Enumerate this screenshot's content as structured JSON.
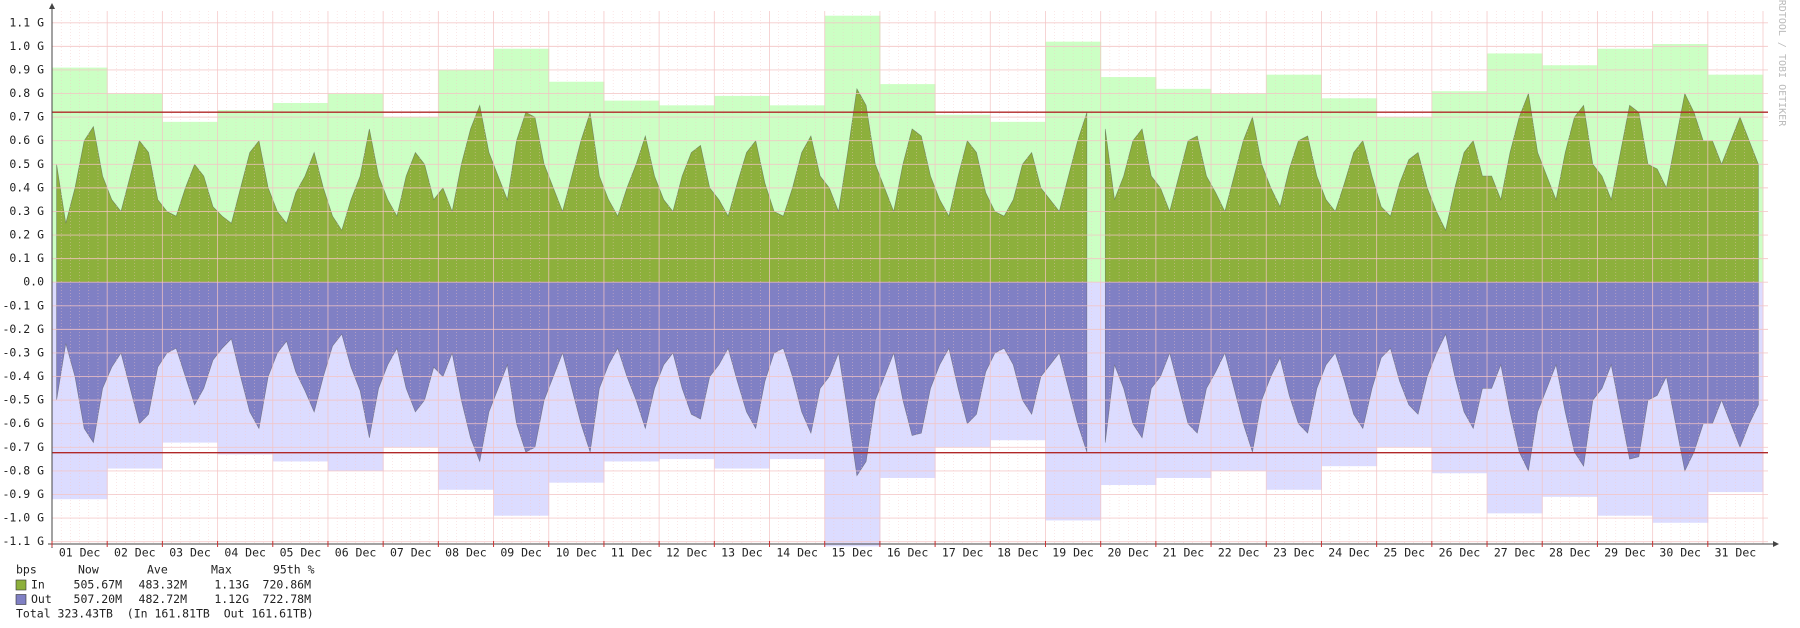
{
  "chart_data": {
    "type": "area",
    "watermark": "RRDTOOL / TOBI OETIKER",
    "categories": [
      "01 Dec",
      "02 Dec",
      "03 Dec",
      "04 Dec",
      "05 Dec",
      "06 Dec",
      "07 Dec",
      "08 Dec",
      "09 Dec",
      "10 Dec",
      "11 Dec",
      "12 Dec",
      "13 Dec",
      "14 Dec",
      "15 Dec",
      "16 Dec",
      "17 Dec",
      "18 Dec",
      "19 Dec",
      "20 Dec",
      "21 Dec",
      "22 Dec",
      "23 Dec",
      "24 Dec",
      "25 Dec",
      "26 Dec",
      "27 Dec",
      "28 Dec",
      "29 Dec",
      "30 Dec",
      "31 Dec"
    ],
    "ylim": [
      -1.11,
      1.15
    ],
    "yticks": [
      {
        "value": 1.1,
        "label": "1.1 G"
      },
      {
        "value": 1.0,
        "label": "1.0 G"
      },
      {
        "value": 0.9,
        "label": "0.9 G"
      },
      {
        "value": 0.8,
        "label": "0.8 G"
      },
      {
        "value": 0.7,
        "label": "0.7 G"
      },
      {
        "value": 0.6,
        "label": "0.6 G"
      },
      {
        "value": 0.5,
        "label": "0.5 G"
      },
      {
        "value": 0.4,
        "label": "0.4 G"
      },
      {
        "value": 0.3,
        "label": "0.3 G"
      },
      {
        "value": 0.2,
        "label": "0.2 G"
      },
      {
        "value": 0.1,
        "label": "0.1 G"
      },
      {
        "value": 0,
        "label": "0.0"
      },
      {
        "value": -0.1,
        "label": "-0.1 G"
      },
      {
        "value": -0.2,
        "label": "-0.2 G"
      },
      {
        "value": -0.3,
        "label": "-0.3 G"
      },
      {
        "value": -0.4,
        "label": "-0.4 G"
      },
      {
        "value": -0.5,
        "label": "-0.5 G"
      },
      {
        "value": -0.6,
        "label": "-0.6 G"
      },
      {
        "value": -0.7,
        "label": "-0.7 G"
      },
      {
        "value": -0.8,
        "label": "-0.8 G"
      },
      {
        "value": -0.9,
        "label": "-0.9 G"
      },
      {
        "value": -1.0,
        "label": "-1.0 G"
      },
      {
        "value": -1.1,
        "label": "-1.1 G"
      }
    ],
    "grid": true,
    "grid_color": "#f4c4c4",
    "percentile_lines": [
      0.72086,
      -0.72278
    ],
    "percentile_color": "#b02828",
    "series": [
      {
        "color": "#ccffc4",
        "values": [
          0.91,
          0.8,
          0.68,
          0.73,
          0.76,
          0.8,
          0.7,
          0.9,
          0.99,
          0.85,
          0.77,
          0.75,
          0.79,
          0.75,
          1.13,
          0.84,
          0.71,
          0.68,
          1.02,
          0.87,
          0.82,
          0.8,
          0.88,
          0.78,
          0.7,
          0.81,
          0.97,
          0.92,
          0.99,
          1.01,
          0.88
        ]
      },
      {
        "name": "In",
        "color": "#8db03c",
        "values": [
          [
            0.5,
            0.25,
            0.4,
            0.6,
            0.66,
            0.45
          ],
          [
            0.35,
            0.3,
            0.45,
            0.6,
            0.55,
            0.35
          ],
          [
            0.3,
            0.28,
            0.4,
            0.5,
            0.45,
            0.32
          ],
          [
            0.28,
            0.25,
            0.4,
            0.55,
            0.6,
            0.4
          ],
          [
            0.3,
            0.25,
            0.38,
            0.45,
            0.55,
            0.4
          ],
          [
            0.28,
            0.22,
            0.35,
            0.45,
            0.65,
            0.45
          ],
          [
            0.35,
            0.28,
            0.45,
            0.55,
            0.5,
            0.35
          ],
          [
            0.4,
            0.3,
            0.5,
            0.65,
            0.75,
            0.55
          ],
          [
            0.45,
            0.35,
            0.6,
            0.72,
            0.7,
            0.5
          ],
          [
            0.4,
            0.3,
            0.45,
            0.6,
            0.72,
            0.45
          ],
          [
            0.35,
            0.28,
            0.4,
            0.5,
            0.62,
            0.45
          ],
          [
            0.35,
            0.3,
            0.45,
            0.55,
            0.58,
            0.4
          ],
          [
            0.35,
            0.28,
            0.42,
            0.55,
            0.6,
            0.42
          ],
          [
            0.3,
            0.28,
            0.4,
            0.55,
            0.62,
            0.45
          ],
          [
            0.4,
            0.3,
            0.55,
            0.82,
            0.75,
            0.5
          ],
          [
            0.4,
            0.3,
            0.5,
            0.65,
            0.62,
            0.45
          ],
          [
            0.35,
            0.28,
            0.45,
            0.6,
            0.55,
            0.38
          ],
          [
            0.3,
            0.28,
            0.35,
            0.5,
            0.55,
            0.4
          ],
          [
            0.35,
            0.3,
            0.45,
            0.6,
            0.72,
            null
          ],
          [
            0.65,
            0.35,
            0.45,
            0.6,
            0.65,
            0.45
          ],
          [
            0.4,
            0.3,
            0.45,
            0.6,
            0.62,
            0.45
          ],
          [
            0.38,
            0.3,
            0.45,
            0.6,
            0.7,
            0.5
          ],
          [
            0.4,
            0.32,
            0.48,
            0.6,
            0.62,
            0.45
          ],
          [
            0.35,
            0.3,
            0.42,
            0.55,
            0.6,
            0.45
          ],
          [
            0.32,
            0.28,
            0.42,
            0.52,
            0.55,
            0.4
          ],
          [
            0.3,
            0.22,
            0.4,
            0.55,
            0.6,
            0.45
          ],
          [
            0.45,
            0.35,
            0.55,
            0.7,
            0.8,
            0.55
          ],
          [
            0.45,
            0.35,
            0.55,
            0.7,
            0.75,
            0.5
          ],
          [
            0.45,
            0.35,
            0.55,
            0.75,
            0.72,
            0.5
          ],
          [
            0.48,
            0.4,
            0.6,
            0.8,
            0.72,
            0.6
          ],
          [
            0.6,
            0.5,
            0.6,
            0.7,
            0.6,
            0.5
          ]
        ]
      },
      {
        "color": "#dcdcff",
        "values": [
          -0.92,
          -0.79,
          -0.68,
          -0.73,
          -0.76,
          -0.8,
          -0.7,
          -0.88,
          -0.99,
          -0.85,
          -0.76,
          -0.75,
          -0.79,
          -0.75,
          -1.12,
          -0.83,
          -0.7,
          -0.67,
          -1.01,
          -0.86,
          -0.83,
          -0.8,
          -0.88,
          -0.78,
          -0.7,
          -0.81,
          -0.98,
          -0.91,
          -0.99,
          -1.02,
          -0.89
        ]
      },
      {
        "name": "Out",
        "color": "#8080c4",
        "values": [
          [
            -0.5,
            -0.26,
            -0.4,
            -0.62,
            -0.68,
            -0.45
          ],
          [
            -0.36,
            -0.3,
            -0.45,
            -0.6,
            -0.56,
            -0.36
          ],
          [
            -0.3,
            -0.28,
            -0.4,
            -0.52,
            -0.45,
            -0.33
          ],
          [
            -0.28,
            -0.24,
            -0.4,
            -0.55,
            -0.62,
            -0.4
          ],
          [
            -0.3,
            -0.25,
            -0.38,
            -0.46,
            -0.55,
            -0.4
          ],
          [
            -0.27,
            -0.22,
            -0.36,
            -0.46,
            -0.66,
            -0.45
          ],
          [
            -0.35,
            -0.28,
            -0.45,
            -0.55,
            -0.5,
            -0.36
          ],
          [
            -0.4,
            -0.3,
            -0.5,
            -0.66,
            -0.76,
            -0.55
          ],
          [
            -0.45,
            -0.35,
            -0.6,
            -0.72,
            -0.7,
            -0.5
          ],
          [
            -0.4,
            -0.3,
            -0.45,
            -0.6,
            -0.72,
            -0.45
          ],
          [
            -0.35,
            -0.28,
            -0.4,
            -0.5,
            -0.62,
            -0.45
          ],
          [
            -0.35,
            -0.3,
            -0.45,
            -0.56,
            -0.58,
            -0.4
          ],
          [
            -0.35,
            -0.28,
            -0.42,
            -0.55,
            -0.62,
            -0.42
          ],
          [
            -0.3,
            -0.28,
            -0.4,
            -0.55,
            -0.64,
            -0.45
          ],
          [
            -0.4,
            -0.3,
            -0.55,
            -0.82,
            -0.76,
            -0.5
          ],
          [
            -0.4,
            -0.3,
            -0.5,
            -0.65,
            -0.64,
            -0.45
          ],
          [
            -0.35,
            -0.28,
            -0.45,
            -0.6,
            -0.56,
            -0.38
          ],
          [
            -0.3,
            -0.28,
            -0.35,
            -0.5,
            -0.56,
            -0.4
          ],
          [
            -0.35,
            -0.3,
            -0.45,
            -0.6,
            -0.72,
            null
          ],
          [
            -0.68,
            -0.35,
            -0.45,
            -0.6,
            -0.66,
            -0.45
          ],
          [
            -0.4,
            -0.3,
            -0.45,
            -0.6,
            -0.64,
            -0.45
          ],
          [
            -0.38,
            -0.3,
            -0.45,
            -0.6,
            -0.72,
            -0.5
          ],
          [
            -0.4,
            -0.32,
            -0.48,
            -0.6,
            -0.64,
            -0.45
          ],
          [
            -0.35,
            -0.3,
            -0.42,
            -0.56,
            -0.62,
            -0.45
          ],
          [
            -0.32,
            -0.28,
            -0.42,
            -0.52,
            -0.56,
            -0.4
          ],
          [
            -0.3,
            -0.22,
            -0.4,
            -0.55,
            -0.62,
            -0.45
          ],
          [
            -0.45,
            -0.35,
            -0.55,
            -0.72,
            -0.8,
            -0.55
          ],
          [
            -0.45,
            -0.35,
            -0.55,
            -0.72,
            -0.78,
            -0.5
          ],
          [
            -0.45,
            -0.35,
            -0.55,
            -0.75,
            -0.74,
            -0.5
          ],
          [
            -0.48,
            -0.4,
            -0.6,
            -0.8,
            -0.72,
            -0.6
          ],
          [
            -0.6,
            -0.5,
            -0.6,
            -0.7,
            -0.6,
            -0.52
          ]
        ]
      }
    ],
    "stats": {
      "headers": [
        "bps",
        "Now",
        "Ave",
        "Max",
        "95th %"
      ],
      "rows": [
        {
          "series": 1,
          "values": [
            "505.67M",
            "483.32M",
            "1.13G",
            "720.86M"
          ]
        },
        {
          "series": 3,
          "values": [
            "507.20M",
            "482.72M",
            "1.12G",
            "722.78M"
          ]
        }
      ],
      "total": "Total 323.43TB  (In 161.81TB  Out 161.61TB)"
    }
  }
}
